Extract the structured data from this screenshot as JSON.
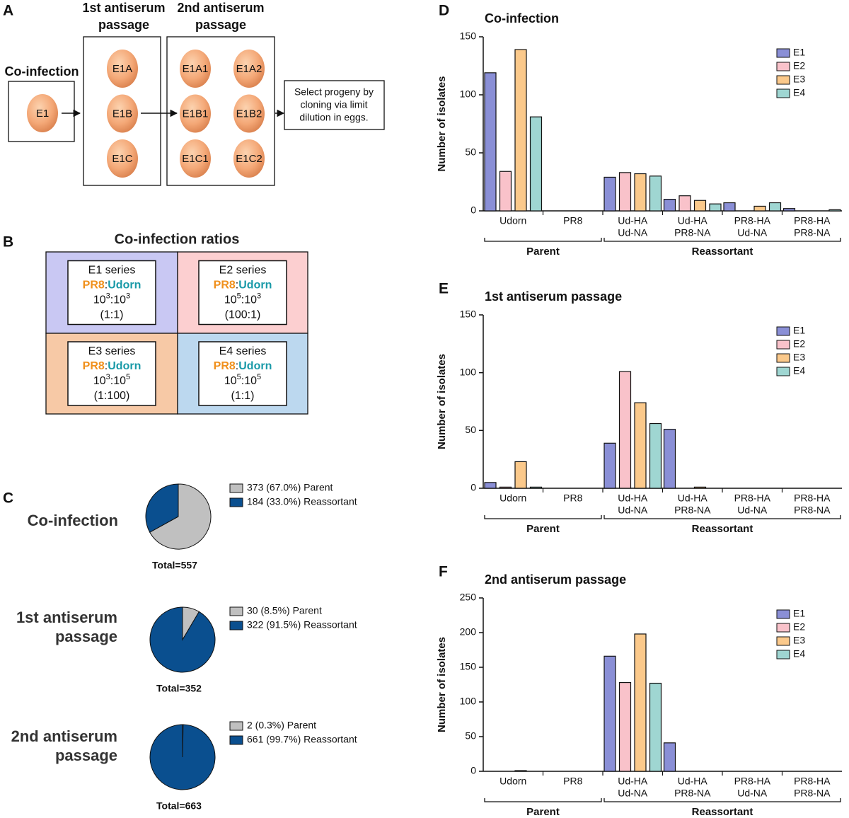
{
  "diagram": {
    "panel": "A",
    "coinfection": {
      "title": "Co-infection",
      "eggs": [
        "E1"
      ]
    },
    "passage1": {
      "title": [
        "1st antiserum",
        "passage"
      ],
      "eggs": [
        "E1A",
        "E1B",
        "E1C"
      ]
    },
    "passage2": {
      "title": [
        "2nd antiserum",
        "passage"
      ],
      "eggs": [
        "E1A1",
        "E1A2",
        "E1B1",
        "E1B2",
        "E1C1",
        "E1C2"
      ]
    },
    "note": [
      "Select progeny by",
      "cloning via limit",
      "dilution in eggs."
    ]
  },
  "ratios": {
    "panel": "B",
    "title": "Co-infection ratios",
    "separator": ":",
    "strains": [
      "PR8",
      "Udorn"
    ],
    "strain_colors": [
      "#f0901c",
      "#1a9aa8"
    ],
    "base": "10",
    "cells": [
      {
        "name": "E1 series",
        "exponents": [
          "3",
          "3"
        ],
        "ratio": "(1:1)",
        "color": "#c9c8f3"
      },
      {
        "name": "E2 series",
        "exponents": [
          "5",
          "3"
        ],
        "ratio": "(100:1)",
        "color": "#fccfd0"
      },
      {
        "name": "E3 series",
        "exponents": [
          "3",
          "5"
        ],
        "ratio": "(1:100)",
        "color": "#f7c9a6"
      },
      {
        "name": "E4 series",
        "exponents": [
          "5",
          "5"
        ],
        "ratio": "(1:1)",
        "color": "#bcd8ef"
      }
    ]
  },
  "chart_data": [
    {
      "type": "pie",
      "panel": "C",
      "title": [
        "Co-infection"
      ],
      "values": [
        67.0,
        33.0
      ],
      "value_labels": [
        "373 (67.0%) Parent",
        "184 (33.0%) Reassortant"
      ],
      "colors": [
        "#c0c0c0",
        "#0a4f8f"
      ],
      "total": "Total=557"
    },
    {
      "type": "pie",
      "title": [
        "1st antiserum",
        "passage"
      ],
      "values": [
        8.5,
        91.5
      ],
      "value_labels": [
        "30 (8.5%) Parent",
        "322 (91.5%) Reassortant"
      ],
      "colors": [
        "#c0c0c0",
        "#0a4f8f"
      ],
      "total": "Total=352"
    },
    {
      "type": "pie",
      "title": [
        "2nd antiserum",
        "passage"
      ],
      "values": [
        0.3,
        99.7
      ],
      "value_labels": [
        "2 (0.3%) Parent",
        "661 (99.7%) Reassortant"
      ],
      "colors": [
        "#c0c0c0",
        "#0a4f8f"
      ],
      "total": "Total=663"
    },
    {
      "type": "bar",
      "panel": "D",
      "title": "Co-infection",
      "y_label": "Number of isolates",
      "categories": [
        [
          "Udorn"
        ],
        [
          "PR8"
        ],
        [
          "Ud-HA",
          "Ud-NA"
        ],
        [
          "Ud-HA",
          "PR8-NA"
        ],
        [
          "PR8-HA",
          "Ud-NA"
        ],
        [
          "PR8-HA",
          "PR8-NA"
        ]
      ],
      "groups": [
        {
          "name": "Parent",
          "categories": 2
        },
        {
          "name": "Reassortant",
          "categories": 4
        }
      ],
      "series": [
        {
          "name": "E1",
          "color": "#8a8fd6",
          "values": [
            119,
            0,
            29,
            10,
            7,
            2
          ]
        },
        {
          "name": "E2",
          "color": "#f9c2ca",
          "values": [
            34,
            0,
            33,
            13,
            0,
            0
          ]
        },
        {
          "name": "E3",
          "color": "#fbc98b",
          "values": [
            139,
            0,
            32,
            9,
            4,
            0
          ]
        },
        {
          "name": "E4",
          "color": "#9fd6d2",
          "values": [
            81,
            0,
            30,
            6,
            7,
            1
          ]
        }
      ],
      "ylim": [
        0,
        150
      ],
      "yticks": [
        0,
        50,
        100,
        150
      ]
    },
    {
      "type": "bar",
      "panel": "E",
      "title": "1st antiserum passage",
      "y_label": "Number of isolates",
      "categories": [
        [
          "Udorn"
        ],
        [
          "PR8"
        ],
        [
          "Ud-HA",
          "Ud-NA"
        ],
        [
          "Ud-HA",
          "PR8-NA"
        ],
        [
          "PR8-HA",
          "Ud-NA"
        ],
        [
          "PR8-HA",
          "PR8-NA"
        ]
      ],
      "groups": [
        {
          "name": "Parent",
          "categories": 2
        },
        {
          "name": "Reassortant",
          "categories": 4
        }
      ],
      "series": [
        {
          "name": "E1",
          "color": "#8a8fd6",
          "values": [
            5,
            0,
            39,
            51,
            0,
            0
          ]
        },
        {
          "name": "E2",
          "color": "#f9c2ca",
          "values": [
            1,
            0,
            101,
            0,
            0,
            0
          ]
        },
        {
          "name": "E3",
          "color": "#fbc98b",
          "values": [
            23,
            0,
            74,
            1,
            0,
            0
          ]
        },
        {
          "name": "E4",
          "color": "#9fd6d2",
          "values": [
            1,
            0,
            56,
            0,
            0,
            0
          ]
        }
      ],
      "ylim": [
        0,
        150
      ],
      "yticks": [
        0,
        50,
        100,
        150
      ]
    },
    {
      "type": "bar",
      "panel": "F",
      "title": "2nd antiserum passage",
      "y_label": "Number of isolates",
      "categories": [
        [
          "Udorn"
        ],
        [
          "PR8"
        ],
        [
          "Ud-HA",
          "Ud-NA"
        ],
        [
          "Ud-HA",
          "PR8-NA"
        ],
        [
          "PR8-HA",
          "Ud-NA"
        ],
        [
          "PR8-HA",
          "PR8-NA"
        ]
      ],
      "groups": [
        {
          "name": "Parent",
          "categories": 2
        },
        {
          "name": "Reassortant",
          "categories": 4
        }
      ],
      "series": [
        {
          "name": "E1",
          "color": "#8a8fd6",
          "values": [
            0,
            0,
            166,
            41,
            0,
            0
          ]
        },
        {
          "name": "E2",
          "color": "#f9c2ca",
          "values": [
            0,
            0,
            128,
            0,
            0,
            0
          ]
        },
        {
          "name": "E3",
          "color": "#fbc98b",
          "values": [
            1,
            0,
            198,
            0,
            0,
            0
          ]
        },
        {
          "name": "E4",
          "color": "#9fd6d2",
          "values": [
            0,
            0,
            127,
            0,
            0,
            0
          ]
        }
      ],
      "ylim": [
        0,
        250
      ],
      "yticks": [
        0,
        50,
        100,
        150,
        200,
        250
      ]
    }
  ]
}
